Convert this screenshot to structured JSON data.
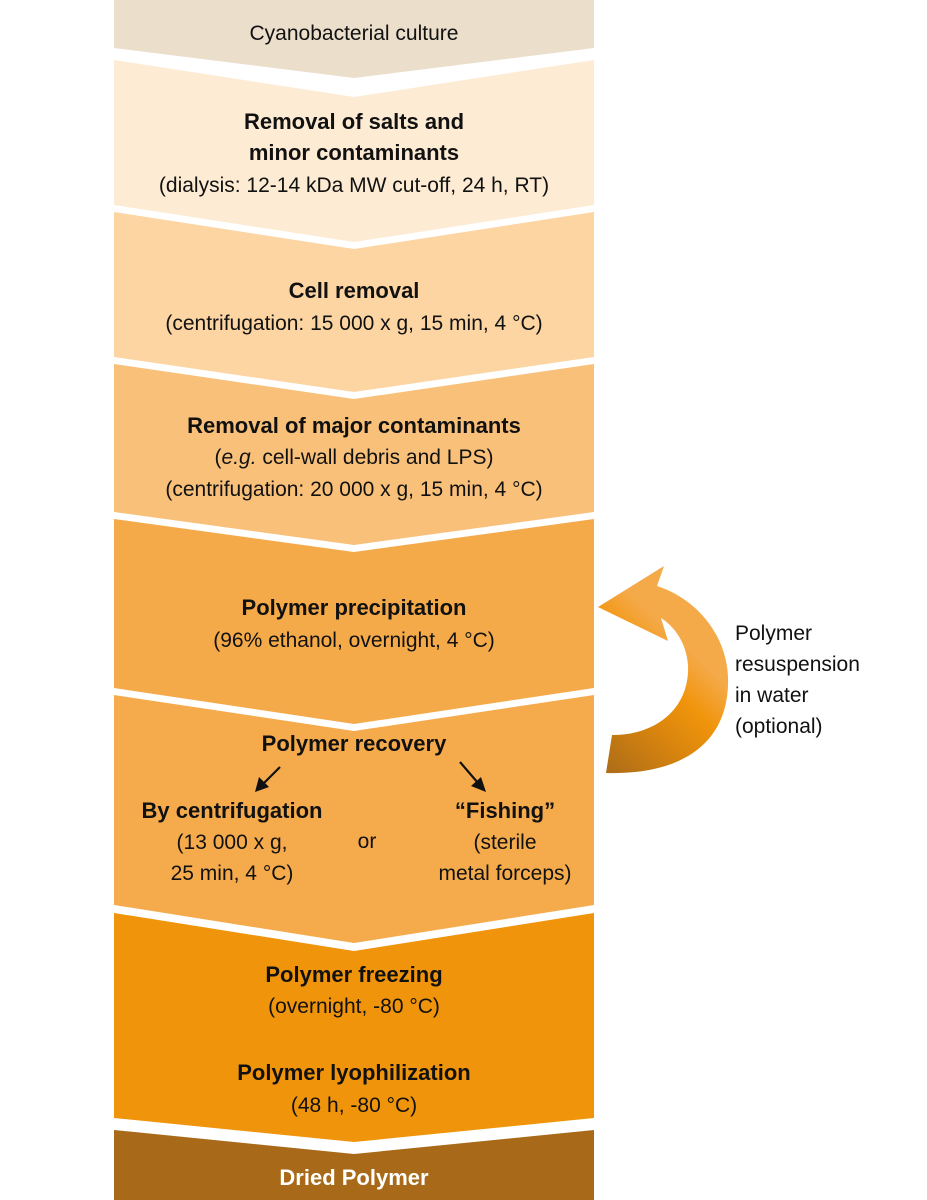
{
  "colors": {
    "step1": "#ebdecb",
    "step2": "#fdebd3",
    "step3": "#fcd5a3",
    "step4": "#f9c07a",
    "step5": "#f5aa4a",
    "step6": "#f5ab4c",
    "step7": "#f0940b",
    "step8": "#a86a18",
    "loop_arrow_start": "#a86a18",
    "loop_arrow_end": "#f5aa4a"
  },
  "steps": [
    {
      "title": "Cyanobacterial culture"
    },
    {
      "title_line1": "Removal of salts and",
      "title_line2": "minor contaminants",
      "detail": "(dialysis: 12-14 kDa MW cut-off, 24 h, RT)"
    },
    {
      "title": "Cell removal",
      "detail": "(centrifugation: 15 000 x g, 15 min, 4 °C)"
    },
    {
      "title": "Removal of major contaminants",
      "detail_em": "e.g.",
      "detail_line1_rest": " cell-wall debris and LPS)",
      "detail_line2": "(centrifugation: 20 000 x g, 15 min, 4 °C)"
    },
    {
      "title": "Polymer precipitation",
      "detail": "(96% ethanol, overnight, 4 °C)"
    },
    {
      "title": "Polymer recovery",
      "option_a_title": "By centrifugation",
      "option_a_line1": "(13 000 x g,",
      "option_a_line2": "25 min, 4 °C)",
      "or": "or",
      "option_b_title": "“Fishing”",
      "option_b_line1": "(sterile",
      "option_b_line2": "metal forceps)"
    },
    {
      "title_a": "Polymer freezing",
      "detail_a": "(overnight, -80 °C)",
      "title_b": "Polymer lyophilization",
      "detail_b": "(48 h, -80 °C)"
    },
    {
      "title": "Dried Polymer"
    }
  ],
  "loop_label": {
    "line1": "Polymer",
    "line2": "resuspension",
    "line3": "in water",
    "line4": "(optional)"
  }
}
